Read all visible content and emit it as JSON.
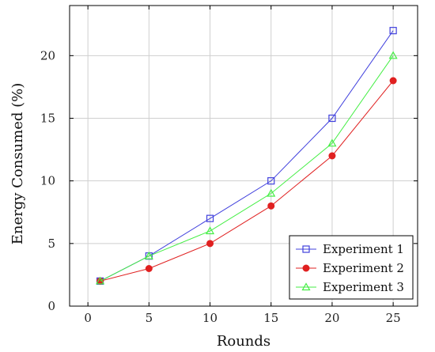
{
  "chart_data": {
    "type": "line",
    "title": "",
    "xlabel": "Rounds",
    "ylabel": "Energy Consumed (%)",
    "xlim": [
      -1.5,
      27
    ],
    "ylim": [
      0,
      24
    ],
    "xticks": [
      0,
      5,
      10,
      15,
      20,
      25
    ],
    "yticks": [
      0,
      5,
      10,
      15,
      20
    ],
    "grid": true,
    "legend_position": "bottom-right",
    "series": [
      {
        "name": "Experiment 1",
        "color": "#4040dd",
        "marker": "square",
        "x": [
          1,
          5,
          10,
          15,
          20,
          25
        ],
        "y": [
          2,
          4,
          7,
          10,
          15,
          22
        ]
      },
      {
        "name": "Experiment 2",
        "color": "#e02020",
        "marker": "circle",
        "x": [
          1,
          5,
          10,
          15,
          20,
          25
        ],
        "y": [
          2,
          3,
          5,
          8,
          12,
          18
        ]
      },
      {
        "name": "Experiment 3",
        "color": "#44ee44",
        "marker": "triangle",
        "x": [
          1,
          5,
          10,
          15,
          20,
          25
        ],
        "y": [
          2,
          4,
          6,
          9,
          13,
          20
        ]
      }
    ]
  }
}
